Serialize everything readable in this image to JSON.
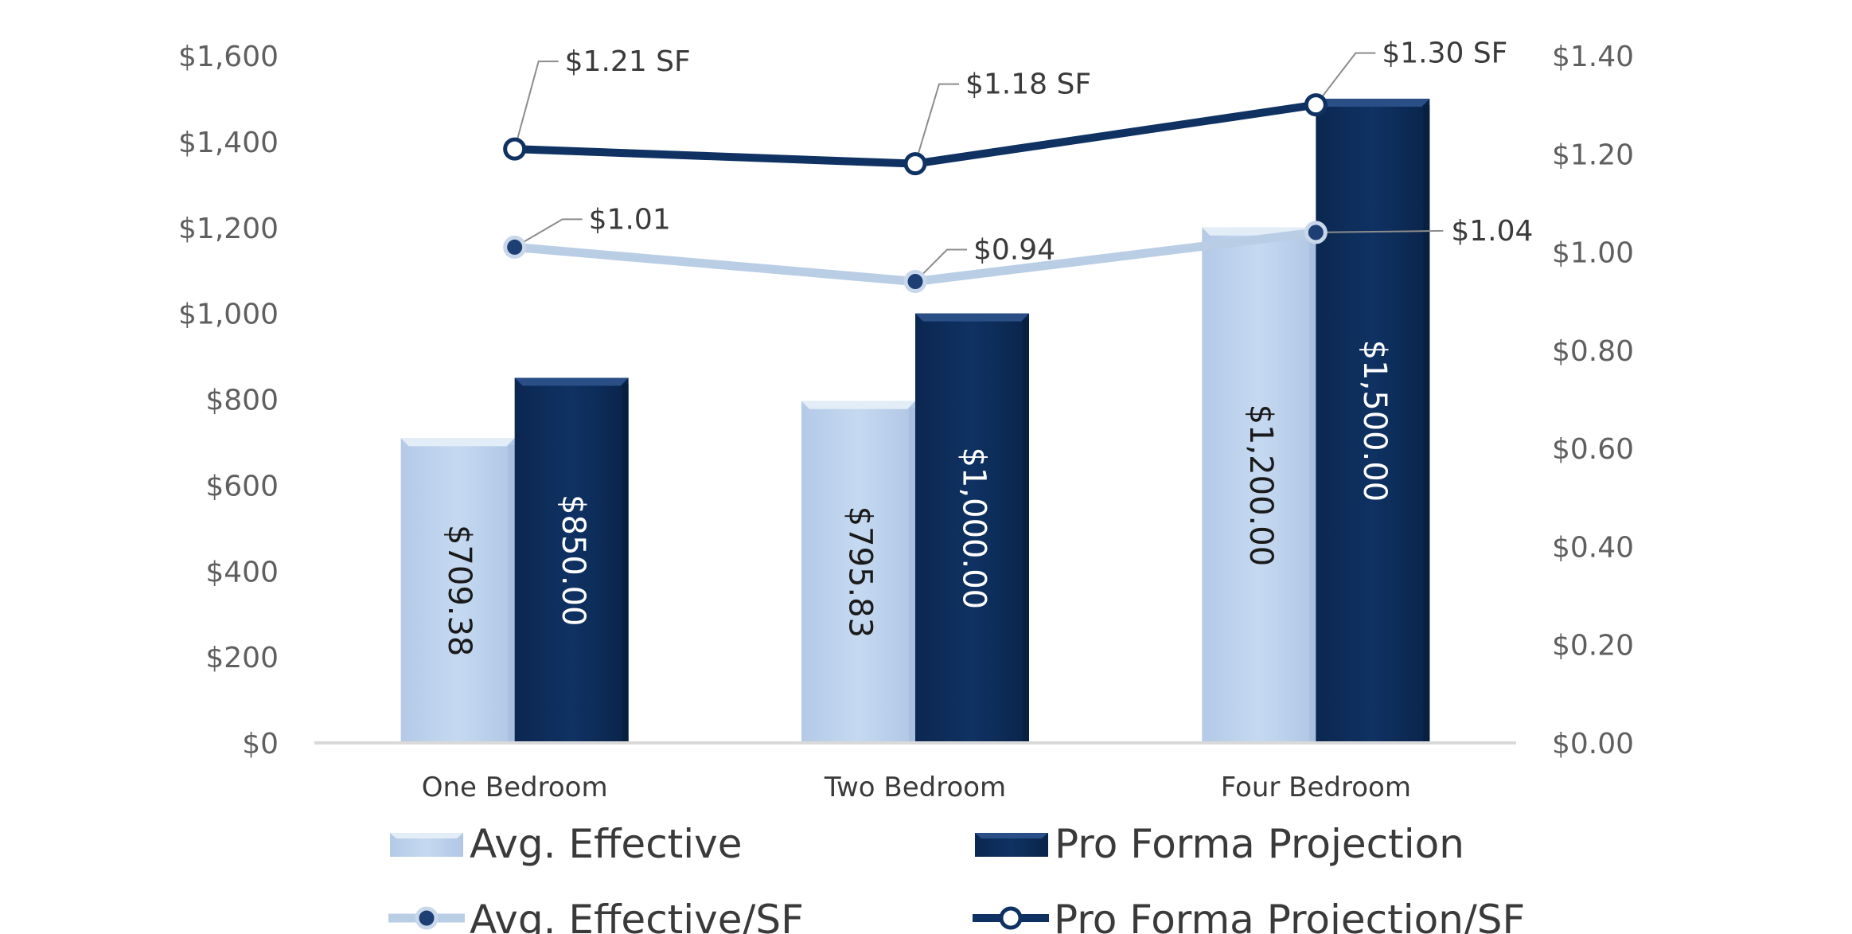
{
  "chart_data": {
    "type": "bar",
    "categories": [
      "One Bedroom",
      "Two Bedroom",
      "Four Bedroom"
    ],
    "series": [
      {
        "name": "Avg. Effective",
        "kind": "bar",
        "axis": "left",
        "values": [
          709.38,
          795.83,
          1200.0
        ],
        "labels": [
          "$709.38",
          "$795.83",
          "$1,200.00"
        ]
      },
      {
        "name": "Pro Forma Projection",
        "kind": "bar",
        "axis": "left",
        "values": [
          850.0,
          1000.0,
          1500.0
        ],
        "labels": [
          "$850.00",
          "$1,000.00",
          "$1,500.00"
        ]
      },
      {
        "name": "Avg. Effective/SF",
        "kind": "line",
        "axis": "right",
        "values": [
          1.01,
          0.94,
          1.04
        ],
        "labels": [
          "$1.01",
          "$0.94",
          "$1.04"
        ]
      },
      {
        "name": "Pro Forma Projection/SF",
        "kind": "line",
        "axis": "right",
        "values": [
          1.21,
          1.18,
          1.3
        ],
        "labels": [
          "$1.21 SF",
          "$1.18 SF",
          "$1.30 SF"
        ]
      }
    ],
    "y_left": {
      "min": 0,
      "max": 1600,
      "step": 200,
      "ticks": [
        "$0",
        "$200",
        "$400",
        "$600",
        "$800",
        "$1,000",
        "$1,200",
        "$1,400",
        "$1,600"
      ]
    },
    "y_right": {
      "min": 0,
      "max": 1.4,
      "step": 0.2,
      "ticks": [
        "$0.00",
        "$0.20",
        "$0.40",
        "$0.60",
        "$0.80",
        "$1.00",
        "$1.20",
        "$1.40"
      ]
    },
    "grid": false,
    "legend_position": "bottom",
    "colors": {
      "avg_effective": "#c5d9f1",
      "pro_forma": "#0f3263",
      "avg_effective_line": "#b9cde5",
      "pro_forma_line": "#0f3263",
      "axis": "#d9d9d9"
    }
  }
}
